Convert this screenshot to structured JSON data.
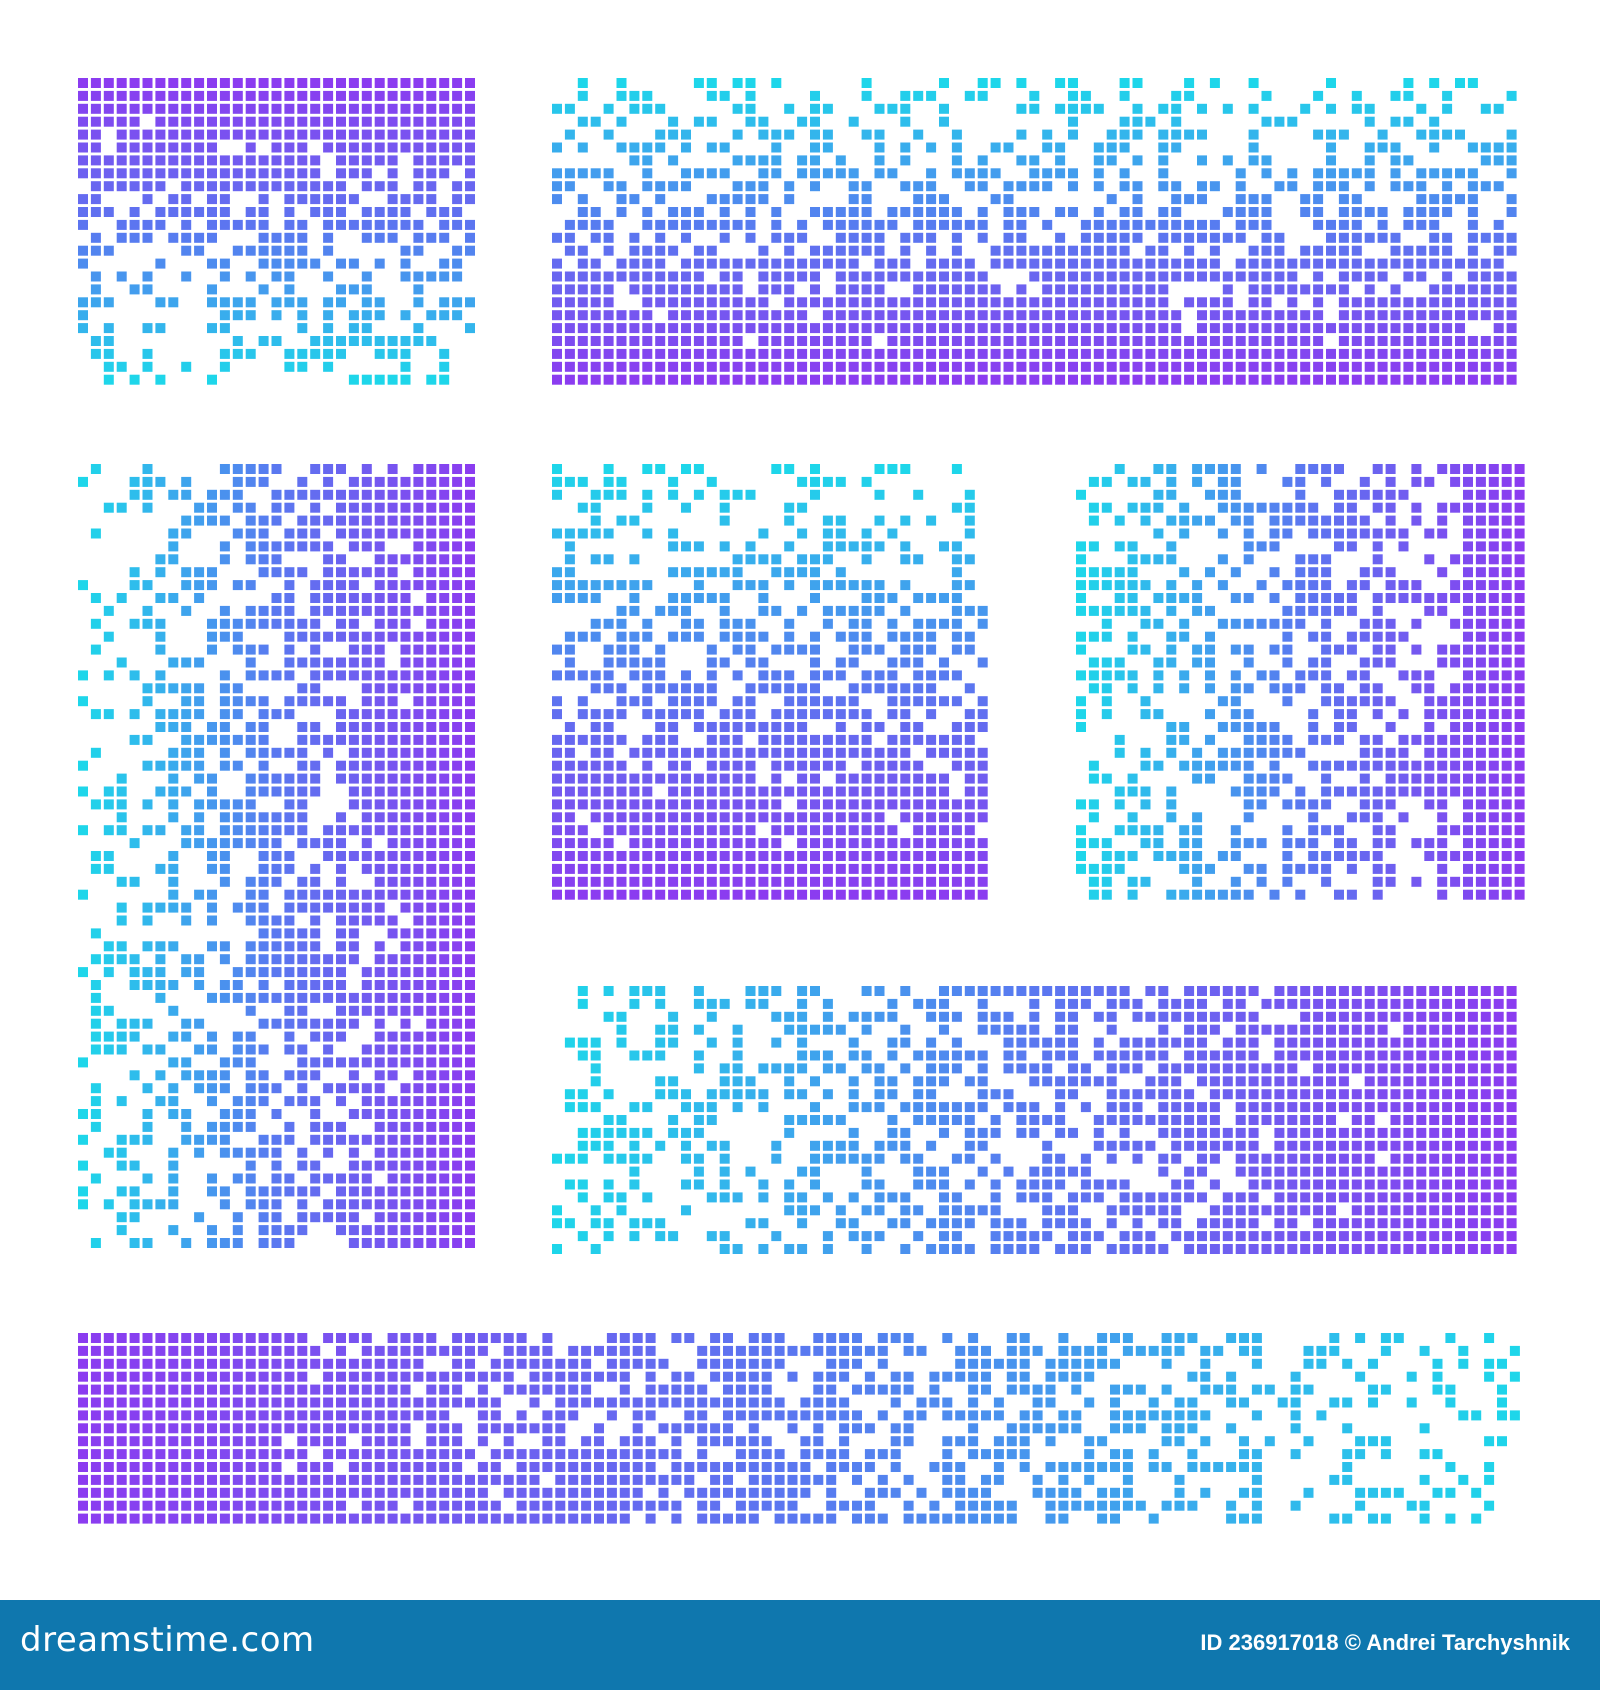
{
  "colors": {
    "purple": "#8b3cf0",
    "blue": "#5a78f0",
    "cyan": "#1ed6ea",
    "footer_bg": "#0f77ae"
  },
  "blocks": [
    {
      "name": "top-left-block",
      "gradient": "purple-top-to-cyan-bottom"
    },
    {
      "name": "top-right-block",
      "gradient": "cyan-top-to-purple-bottom"
    },
    {
      "name": "left-tall-block",
      "gradient": "cyan-left-to-purple-right"
    },
    {
      "name": "center-square-block",
      "gradient": "cyan-top-to-purple-bottom"
    },
    {
      "name": "right-square-block",
      "gradient": "cyan-left-to-purple-right"
    },
    {
      "name": "middle-wide-block",
      "gradient": "cyan-left-to-purple-right"
    },
    {
      "name": "bottom-wide-block",
      "gradient": "purple-left-to-cyan-right"
    }
  ],
  "footer": {
    "logo": "dreamstime.com",
    "credit": "ID 236917018 © Andrei Tarchyshnik"
  }
}
